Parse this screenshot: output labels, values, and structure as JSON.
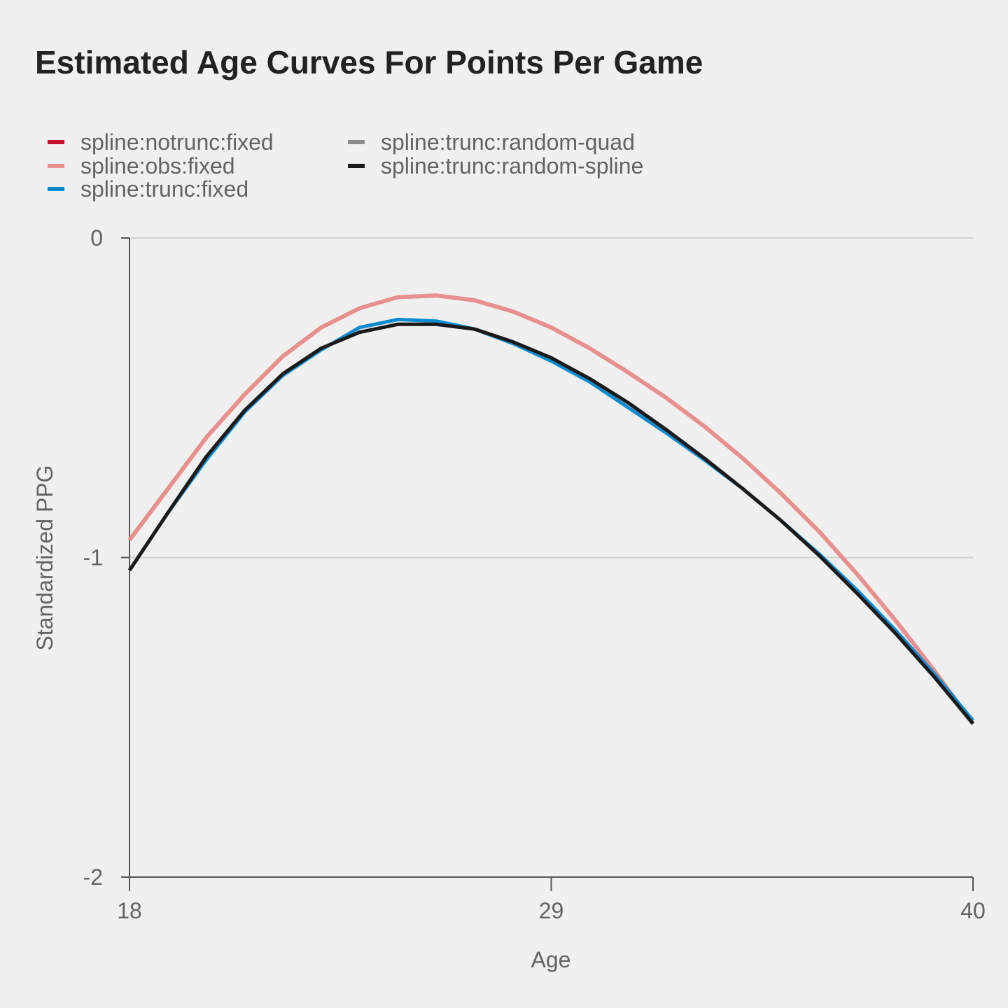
{
  "chart_data": {
    "type": "line",
    "title": "Estimated Age Curves For Points Per Game",
    "xlabel": "Age",
    "ylabel": "Standardized PPG",
    "xlim": [
      18,
      40
    ],
    "ylim": [
      -2,
      0
    ],
    "x_ticks": [
      "18",
      "29",
      "40"
    ],
    "y_ticks": [
      "0",
      "-1",
      "-2"
    ],
    "grid": "horizontal",
    "legend_position": "top-left",
    "x": [
      18,
      19,
      20,
      21,
      22,
      23,
      24,
      25,
      26,
      27,
      28,
      29,
      30,
      31,
      32,
      33,
      34,
      35,
      36,
      37,
      38,
      39,
      40
    ],
    "series": [
      {
        "name": "spline:notrunc:fixed",
        "color": "#c8102e",
        "values": [
          -0.945,
          -0.785,
          -0.625,
          -0.49,
          -0.37,
          -0.28,
          -0.22,
          -0.185,
          -0.18,
          -0.195,
          -0.23,
          -0.28,
          -0.345,
          -0.42,
          -0.5,
          -0.59,
          -0.69,
          -0.8,
          -0.92,
          -1.055,
          -1.2,
          -1.355,
          -1.52
        ]
      },
      {
        "name": "spline:obs:fixed",
        "color": "#e8908f",
        "values": [
          -0.945,
          -0.785,
          -0.625,
          -0.49,
          -0.37,
          -0.28,
          -0.22,
          -0.185,
          -0.18,
          -0.195,
          -0.23,
          -0.28,
          -0.345,
          -0.42,
          -0.5,
          -0.59,
          -0.69,
          -0.8,
          -0.92,
          -1.055,
          -1.2,
          -1.355,
          -1.52
        ]
      },
      {
        "name": "spline:trunc:fixed",
        "color": "#0a8bd0",
        "values": [
          -1.04,
          -0.86,
          -0.695,
          -0.545,
          -0.43,
          -0.35,
          -0.28,
          -0.255,
          -0.26,
          -0.285,
          -0.33,
          -0.385,
          -0.45,
          -0.53,
          -0.61,
          -0.695,
          -0.785,
          -0.885,
          -0.99,
          -1.105,
          -1.23,
          -1.365,
          -1.51
        ]
      },
      {
        "name": "spline:trunc:random-quad",
        "color": "#8c8c8c",
        "values": [
          -1.04,
          -0.86,
          -0.685,
          -0.54,
          -0.425,
          -0.345,
          -0.295,
          -0.27,
          -0.27,
          -0.285,
          -0.325,
          -0.375,
          -0.44,
          -0.515,
          -0.6,
          -0.69,
          -0.785,
          -0.885,
          -0.995,
          -1.115,
          -1.24,
          -1.375,
          -1.52
        ]
      },
      {
        "name": "spline:trunc:random-spline",
        "color": "#1a1a1a",
        "values": [
          -1.04,
          -0.86,
          -0.685,
          -0.54,
          -0.425,
          -0.345,
          -0.295,
          -0.27,
          -0.27,
          -0.285,
          -0.325,
          -0.375,
          -0.44,
          -0.515,
          -0.6,
          -0.69,
          -0.785,
          -0.885,
          -0.995,
          -1.115,
          -1.24,
          -1.375,
          -1.52
        ]
      }
    ]
  }
}
